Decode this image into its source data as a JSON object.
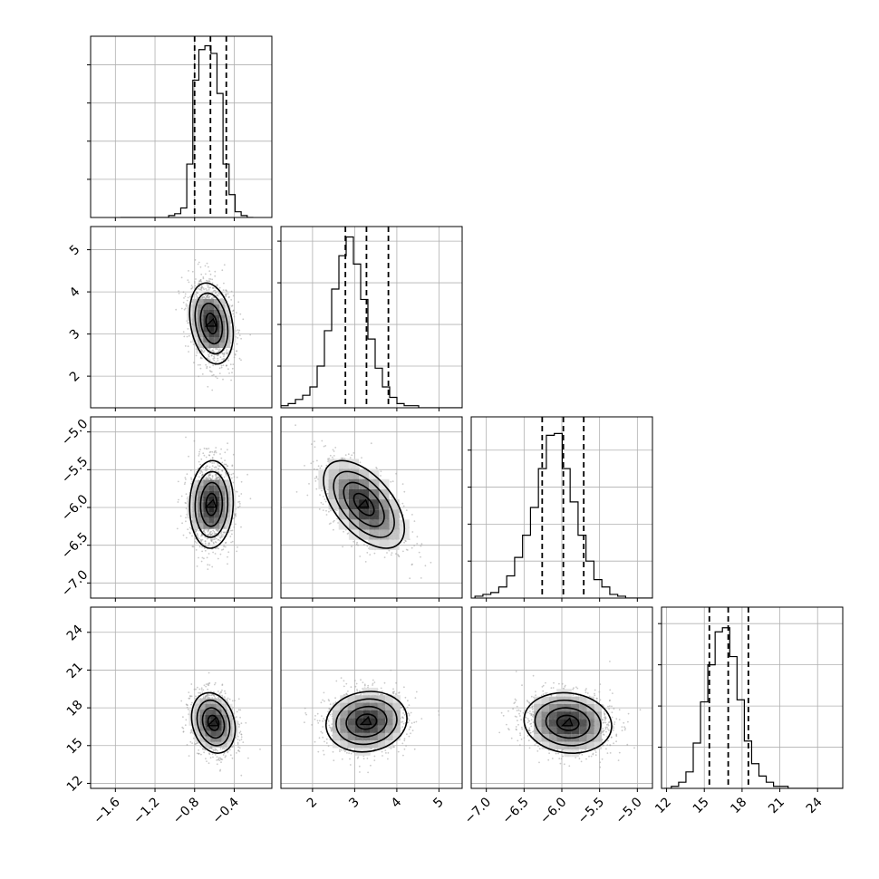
{
  "chart_data": {
    "type": "corner",
    "params": [
      {
        "ticks": [
          "−1.6",
          "−1.2",
          "−0.8",
          "−0.4"
        ],
        "tick_values": [
          -1.6,
          -1.2,
          -0.8,
          -0.4
        ],
        "range": [
          -1.85,
          -0.02
        ],
        "quantiles": [
          -0.8,
          -0.64,
          -0.48
        ],
        "hist": {
          "edges_start": -1.55,
          "bin_width": 0.061,
          "counts": [
            0,
            0,
            0,
            0,
            0,
            0,
            0,
            0,
            0.01,
            0.02,
            0.05,
            0.28,
            0.72,
            0.88,
            0.9,
            0.86,
            0.65,
            0.28,
            0.12,
            0.03,
            0.01,
            0
          ]
        }
      },
      {
        "ticks": [
          "2",
          "3",
          "4",
          "5"
        ],
        "tick_values": [
          2,
          3,
          4,
          5
        ],
        "range": [
          1.25,
          5.55
        ],
        "quantiles": [
          2.78,
          3.28,
          3.8
        ],
        "hist": {
          "edges_start": 1.25,
          "bin_width": 0.172,
          "counts": [
            0.01,
            0.02,
            0.04,
            0.06,
            0.1,
            0.2,
            0.37,
            0.57,
            0.73,
            0.82,
            0.69,
            0.52,
            0.33,
            0.19,
            0.1,
            0.05,
            0.02,
            0.01,
            0.01,
            0,
            0,
            0,
            0,
            0,
            0
          ]
        }
      },
      {
        "ticks": [
          "−7.0",
          "−6.5",
          "−6.0",
          "−5.5",
          "−5.0"
        ],
        "tick_values": [
          -7.0,
          -6.5,
          -6.0,
          -5.5,
          -5.0
        ],
        "range": [
          -7.2,
          -4.8
        ],
        "quantiles": [
          -6.26,
          -5.98,
          -5.71
        ],
        "hist": {
          "edges_start": -7.15,
          "bin_width": 0.105,
          "counts": [
            0.01,
            0.02,
            0.03,
            0.06,
            0.12,
            0.22,
            0.34,
            0.49,
            0.7,
            0.88,
            0.89,
            0.7,
            0.52,
            0.34,
            0.2,
            0.1,
            0.06,
            0.02,
            0.01,
            0,
            0,
            0,
            0
          ]
        }
      },
      {
        "ticks": [
          "12",
          "15",
          "18",
          "21",
          "24"
        ],
        "tick_values": [
          12,
          15,
          18,
          21,
          24
        ],
        "range": [
          11.6,
          26.0
        ],
        "quantiles": [
          15.4,
          16.9,
          18.5
        ],
        "hist": {
          "edges_start": 11.8,
          "bin_width": 0.58,
          "counts": [
            0,
            0.01,
            0.03,
            0.08,
            0.22,
            0.42,
            0.6,
            0.76,
            0.78,
            0.64,
            0.43,
            0.23,
            0.12,
            0.06,
            0.03,
            0.01,
            0.01,
            0,
            0,
            0,
            0,
            0,
            0,
            0,
            0
          ]
        }
      }
    ],
    "hist_yticks": [
      [
        0.2,
        0.4,
        0.6,
        0.8
      ],
      [
        0.2,
        0.4,
        0.6,
        0.8
      ],
      [
        0.2,
        0.4,
        0.6,
        0.8
      ],
      [
        0.2,
        0.4,
        0.6,
        0.8
      ]
    ],
    "hist_ymax": [
      0.95,
      0.87,
      0.98,
      0.88
    ],
    "pairs": [
      {
        "row": 1,
        "col": 0,
        "center": [
          -0.63,
          3.25
        ],
        "sd": [
          0.11,
          0.48
        ],
        "corr": -0.25
      },
      {
        "row": 2,
        "col": 0,
        "center": [
          -0.63,
          -5.96
        ],
        "sd": [
          0.11,
          0.29
        ],
        "corr": 0.05
      },
      {
        "row": 2,
        "col": 1,
        "center": [
          3.22,
          -5.96
        ],
        "sd": [
          0.48,
          0.29
        ],
        "corr": -0.55
      },
      {
        "row": 3,
        "col": 0,
        "center": [
          -0.61,
          16.8
        ],
        "sd": [
          0.11,
          1.2
        ],
        "corr": -0.2
      },
      {
        "row": 3,
        "col": 1,
        "center": [
          3.28,
          16.9
        ],
        "sd": [
          0.48,
          1.2
        ],
        "corr": 0.1
      },
      {
        "row": 3,
        "col": 2,
        "center": [
          -5.92,
          16.8
        ],
        "sd": [
          0.29,
          1.2
        ],
        "corr": -0.1
      }
    ],
    "contour_levels_sigma": [
      0.5,
      1.0,
      1.5,
      2.0
    ],
    "grid": true,
    "colors": {
      "line": "#000000",
      "grid": "#b0b0b0",
      "points": "#9e9e9e"
    }
  }
}
